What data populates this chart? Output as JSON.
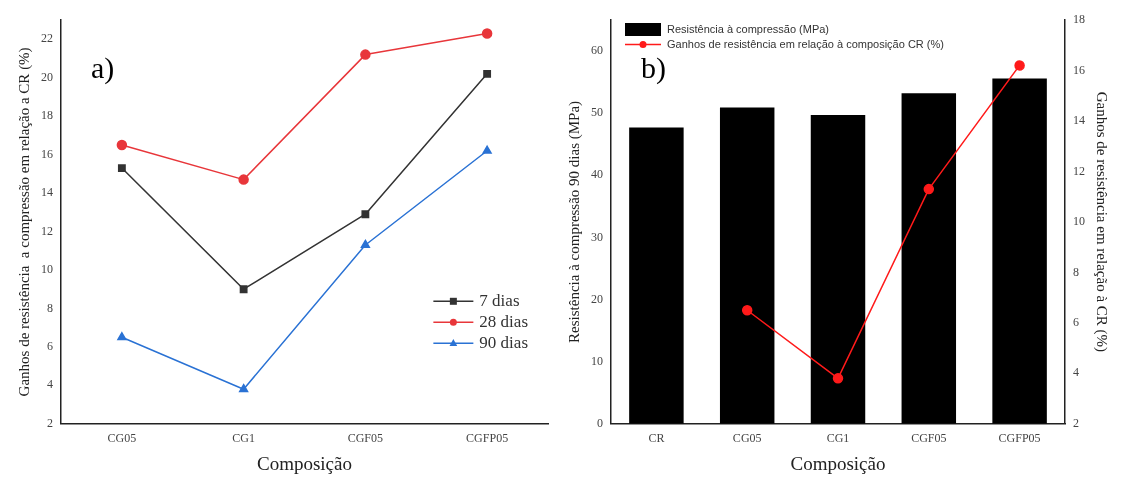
{
  "chart_data": [
    {
      "type": "line",
      "categories": [
        "CG05",
        "CG1",
        "CGF05",
        "CGFP05"
      ],
      "xlabel": "Composição",
      "ylabel": "Ganhos de resistência  a compressão em relação a CR (%)",
      "ylim": [
        2,
        23
      ],
      "yticks": [
        2,
        4,
        6,
        8,
        10,
        12,
        14,
        16,
        18,
        20,
        22
      ],
      "legend": "bottom right",
      "grid": false,
      "annotations": [
        "a)"
      ],
      "series": [
        {
          "name": "7 dias",
          "color": "#333333",
          "marker": "square",
          "values": [
            15.3,
            9.0,
            12.9,
            20.2
          ]
        },
        {
          "name": "28 dias",
          "color": "#e8363a",
          "marker": "circle",
          "values": [
            16.5,
            14.7,
            21.2,
            22.3
          ]
        },
        {
          "name": "90 dias",
          "color": "#2a72d4",
          "marker": "triangle",
          "values": [
            6.5,
            3.8,
            11.3,
            16.2
          ]
        }
      ]
    },
    {
      "type": "bar",
      "categories": [
        "CR",
        "CG05",
        "CG1",
        "CGF05",
        "CGFP05"
      ],
      "xlabel": "Composição",
      "ylabel": "Resistência à compressão 90 dias (MPa)",
      "y2label": "Ganhos de resistência em relação à CR (%)",
      "ylim": [
        0,
        65
      ],
      "yticks": [
        0,
        10,
        20,
        30,
        40,
        50,
        60
      ],
      "y2lim": [
        2,
        18
      ],
      "y2ticks": [
        2,
        4,
        6,
        8,
        10,
        12,
        14,
        16,
        18
      ],
      "legend": "top left",
      "grid": false,
      "annotations": [
        "b)"
      ],
      "series": [
        {
          "name": "Resistência à compressão (MPa)",
          "color": "#000000",
          "values": [
            47.7,
            50.9,
            49.7,
            53.2,
            55.6
          ]
        },
        {
          "name": "Ganhos de resistência em relação à composição CR (%)",
          "type": "line",
          "axis": "y2",
          "color": "#ff1a1a",
          "marker": "circle",
          "values": [
            null,
            6.5,
            3.8,
            11.3,
            16.2
          ]
        }
      ]
    }
  ]
}
